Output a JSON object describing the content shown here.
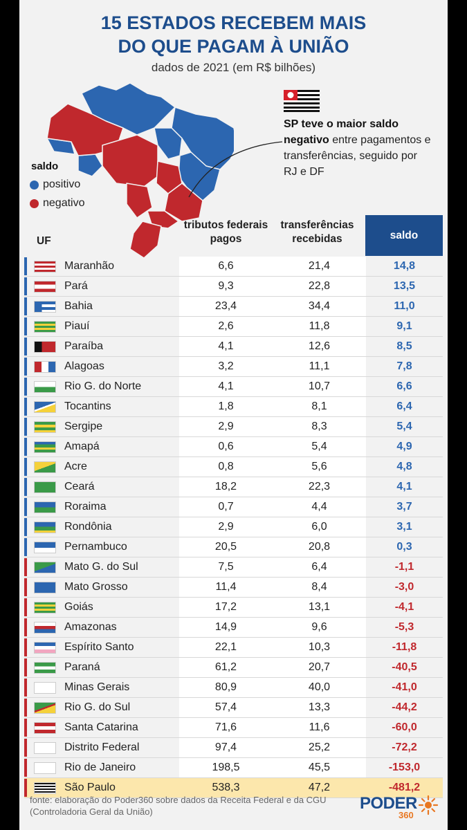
{
  "title_line1": "15 ESTADOS RECEBEM MAIS",
  "title_line2": "DO QUE PAGAM À UNIÃO",
  "subtitle": "dados de 2021 (em R$ bilhões)",
  "legend": {
    "title": "saldo",
    "positive": "positivo",
    "negative": "negativo"
  },
  "colors": {
    "positive": "#2c66b0",
    "negative": "#c0282d",
    "header": "#1d4d8c",
    "highlight": "#fce7ac"
  },
  "note": {
    "bold": "SP teve o maior saldo negativo",
    "rest": "entre pagamentos e transferências, seguido por RJ e DF"
  },
  "headers": {
    "uf": "UF",
    "tributos": "tributos federais pagos",
    "transferencias": "transferências recebidas",
    "saldo": "saldo"
  },
  "chart_data": {
    "type": "table",
    "title": "15 ESTADOS RECEBEM MAIS DO QUE PAGAM À UNIÃO",
    "subtitle": "dados de 2021 (em R$ bilhões)",
    "columns": [
      "UF",
      "tributos federais pagos",
      "transferências recebidas",
      "saldo"
    ],
    "rows": [
      {
        "uf": "Maranhão",
        "tributos": "6,6",
        "transf": "21,4",
        "saldo": "14,8",
        "sign": "pos"
      },
      {
        "uf": "Pará",
        "tributos": "9,3",
        "transf": "22,8",
        "saldo": "13,5",
        "sign": "pos"
      },
      {
        "uf": "Bahia",
        "tributos": "23,4",
        "transf": "34,4",
        "saldo": "11,0",
        "sign": "pos"
      },
      {
        "uf": "Piauí",
        "tributos": "2,6",
        "transf": "11,8",
        "saldo": "9,1",
        "sign": "pos"
      },
      {
        "uf": "Paraíba",
        "tributos": "4,1",
        "transf": "12,6",
        "saldo": "8,5",
        "sign": "pos"
      },
      {
        "uf": "Alagoas",
        "tributos": "3,2",
        "transf": "11,1",
        "saldo": "7,8",
        "sign": "pos"
      },
      {
        "uf": "Rio G. do Norte",
        "tributos": "4,1",
        "transf": "10,7",
        "saldo": "6,6",
        "sign": "pos"
      },
      {
        "uf": "Tocantins",
        "tributos": "1,8",
        "transf": "8,1",
        "saldo": "6,4",
        "sign": "pos"
      },
      {
        "uf": "Sergipe",
        "tributos": "2,9",
        "transf": "8,3",
        "saldo": "5,4",
        "sign": "pos"
      },
      {
        "uf": "Amapá",
        "tributos": "0,6",
        "transf": "5,4",
        "saldo": "4,9",
        "sign": "pos"
      },
      {
        "uf": "Acre",
        "tributos": "0,8",
        "transf": "5,6",
        "saldo": "4,8",
        "sign": "pos"
      },
      {
        "uf": "Ceará",
        "tributos": "18,2",
        "transf": "22,3",
        "saldo": "4,1",
        "sign": "pos"
      },
      {
        "uf": "Roraima",
        "tributos": "0,7",
        "transf": "4,4",
        "saldo": "3,7",
        "sign": "pos"
      },
      {
        "uf": "Rondônia",
        "tributos": "2,9",
        "transf": "6,0",
        "saldo": "3,1",
        "sign": "pos"
      },
      {
        "uf": "Pernambuco",
        "tributos": "20,5",
        "transf": "20,8",
        "saldo": "0,3",
        "sign": "pos"
      },
      {
        "uf": "Mato G. do Sul",
        "tributos": "7,5",
        "transf": "6,4",
        "saldo": "-1,1",
        "sign": "neg"
      },
      {
        "uf": "Mato Grosso",
        "tributos": "11,4",
        "transf": "8,4",
        "saldo": "-3,0",
        "sign": "neg"
      },
      {
        "uf": "Goiás",
        "tributos": "17,2",
        "transf": "13,1",
        "saldo": "-4,1",
        "sign": "neg"
      },
      {
        "uf": "Amazonas",
        "tributos": "14,9",
        "transf": "9,6",
        "saldo": "-5,3",
        "sign": "neg"
      },
      {
        "uf": "Espírito Santo",
        "tributos": "22,1",
        "transf": "10,3",
        "saldo": "-11,8",
        "sign": "neg"
      },
      {
        "uf": "Paraná",
        "tributos": "61,2",
        "transf": "20,7",
        "saldo": "-40,5",
        "sign": "neg"
      },
      {
        "uf": "Minas Gerais",
        "tributos": "80,9",
        "transf": "40,0",
        "saldo": "-41,0",
        "sign": "neg"
      },
      {
        "uf": "Rio G. do Sul",
        "tributos": "57,4",
        "transf": "13,3",
        "saldo": "-44,2",
        "sign": "neg"
      },
      {
        "uf": "Santa Catarina",
        "tributos": "71,6",
        "transf": "11,6",
        "saldo": "-60,0",
        "sign": "neg"
      },
      {
        "uf": "Distrito Federal",
        "tributos": "97,4",
        "transf": "25,2",
        "saldo": "-72,2",
        "sign": "neg"
      },
      {
        "uf": "Rio de Janeiro",
        "tributos": "198,5",
        "transf": "45,5",
        "saldo": "-153,0",
        "sign": "neg"
      },
      {
        "uf": "São Paulo",
        "tributos": "538,3",
        "transf": "47,2",
        "saldo": "-481,2",
        "sign": "neg"
      }
    ]
  },
  "source": "fonte: elaboração do Poder360 sobre dados da Receita Federal e da CGU (Controladoria Geral da União)",
  "logo": {
    "name": "PODER",
    "number": "360"
  }
}
